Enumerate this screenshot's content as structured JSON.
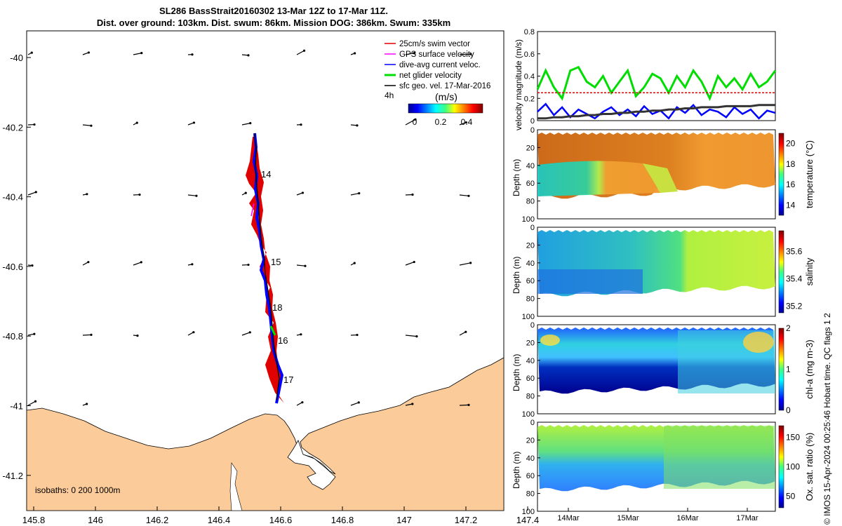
{
  "header": {
    "title_line1": "SL286 BassStrait20160302 13-Mar 12Z to 17-Mar 11Z.",
    "title_line2": "Dist. over ground: 103km. Dist. swum: 86km. Mission DOG: 386km. Swum: 335km"
  },
  "map": {
    "x_ticks": [
      "145.8",
      "146",
      "146.2",
      "146.4",
      "146.6",
      "146.8",
      "147",
      "147.2",
      "147.4"
    ],
    "y_ticks": [
      "-40",
      "-40.2",
      "-40.4",
      "-40.6",
      "-40.8",
      "-41",
      "-41.2"
    ],
    "legend": [
      {
        "label": "25cm/s swim vector",
        "color": "#e00000"
      },
      {
        "label": "GPS surface velocity",
        "color": "#ff00ff"
      },
      {
        "label": "dive-avg current veloc.",
        "color": "#0000ff"
      },
      {
        "label": "net glider velocity",
        "color": "#00dd00"
      },
      {
        "label": "sfc geo. vel. 17-Mar-2016",
        "color": "#000000"
      }
    ],
    "legend_note": "4h",
    "colorbar_label": "(m/s)",
    "colorbar_ticks": [
      "0",
      "0.2",
      "0.4"
    ],
    "day_labels": [
      "14",
      "15",
      "18",
      "16",
      "17"
    ],
    "isobaths_label": "isobaths: 0   200  1000m",
    "land_color": "#fbcb9a"
  },
  "chart_data": [
    {
      "type": "line",
      "title": "",
      "ylabel": "velocity magnitude (m/s)",
      "ylim": [
        0,
        0.8
      ],
      "y_ticks": [
        "0",
        "0.2",
        "0.4",
        "0.6",
        "0.8"
      ],
      "series": [
        {
          "name": "net glider velocity",
          "color": "#00dd00",
          "values": [
            0.28,
            0.45,
            0.3,
            0.2,
            0.45,
            0.48,
            0.35,
            0.3,
            0.4,
            0.25,
            0.35,
            0.45,
            0.22,
            0.3,
            0.42,
            0.38,
            0.25,
            0.4,
            0.3,
            0.45,
            0.35,
            0.2,
            0.4,
            0.3,
            0.38,
            0.28,
            0.42,
            0.3,
            0.35,
            0.45
          ]
        },
        {
          "name": "dive-avg current veloc.",
          "color": "#0000ff",
          "values": [
            0.08,
            0.15,
            0.05,
            0.12,
            0.03,
            0.1,
            0.06,
            0.02,
            0.08,
            0.12,
            0.05,
            0.1,
            0.04,
            0.13,
            0.06,
            0.09,
            0.02,
            0.12,
            0.07,
            0.14,
            0.05,
            0.1,
            0.08,
            0.03,
            0.12,
            0.06,
            0.1,
            0.02,
            0.09,
            0.07
          ]
        },
        {
          "name": "25cm/s swim vector",
          "color": "#e00000",
          "values": [
            0.25,
            0.25,
            0.25,
            0.25,
            0.25,
            0.25,
            0.25,
            0.25,
            0.25,
            0.25,
            0.25,
            0.25,
            0.25,
            0.25,
            0.25,
            0.25,
            0.25,
            0.25,
            0.25,
            0.25,
            0.25,
            0.25,
            0.25,
            0.25,
            0.25,
            0.25,
            0.25,
            0.25,
            0.25,
            0.25
          ]
        },
        {
          "name": "sfc geo. vel.",
          "color": "#333333",
          "values": [
            0.02,
            0.02,
            0.03,
            0.03,
            0.04,
            0.04,
            0.05,
            0.05,
            0.06,
            0.06,
            0.07,
            0.07,
            0.08,
            0.08,
            0.09,
            0.09,
            0.1,
            0.1,
            0.11,
            0.11,
            0.12,
            0.12,
            0.12,
            0.13,
            0.13,
            0.13,
            0.13,
            0.14,
            0.14,
            0.14
          ]
        }
      ]
    },
    {
      "type": "heatmap",
      "ylabel": "Depth (m)",
      "clabel": "temperature (°C)",
      "clim": [
        13,
        21
      ],
      "c_ticks": [
        "14",
        "16",
        "18",
        "20"
      ]
    },
    {
      "type": "heatmap",
      "ylabel": "Depth (m)",
      "clabel": "salinity",
      "clim": [
        35.15,
        35.75
      ],
      "c_ticks": [
        "35.2",
        "35.4",
        "35.6"
      ]
    },
    {
      "type": "heatmap",
      "ylabel": "Depth (m)",
      "clabel": "chl-a (mg m-3)",
      "clim": [
        0,
        2
      ],
      "c_ticks": [
        "0",
        "1",
        "2"
      ]
    },
    {
      "type": "heatmap",
      "ylabel": "Depth (m)",
      "clabel": "Ox. sat. ratio (%)",
      "clim": [
        30,
        170
      ],
      "c_ticks": [
        "50",
        "100",
        "150"
      ]
    }
  ],
  "profiles": {
    "depth_ticks": [
      "0",
      "20",
      "40",
      "60",
      "80",
      "100"
    ],
    "time_ticks": [
      "14Mar",
      "15Mar",
      "16Mar",
      "17Mar"
    ]
  },
  "side_note": "© IMOS 15-Apr-2024 00:25:46 Hobart time. QC flags 1  2"
}
